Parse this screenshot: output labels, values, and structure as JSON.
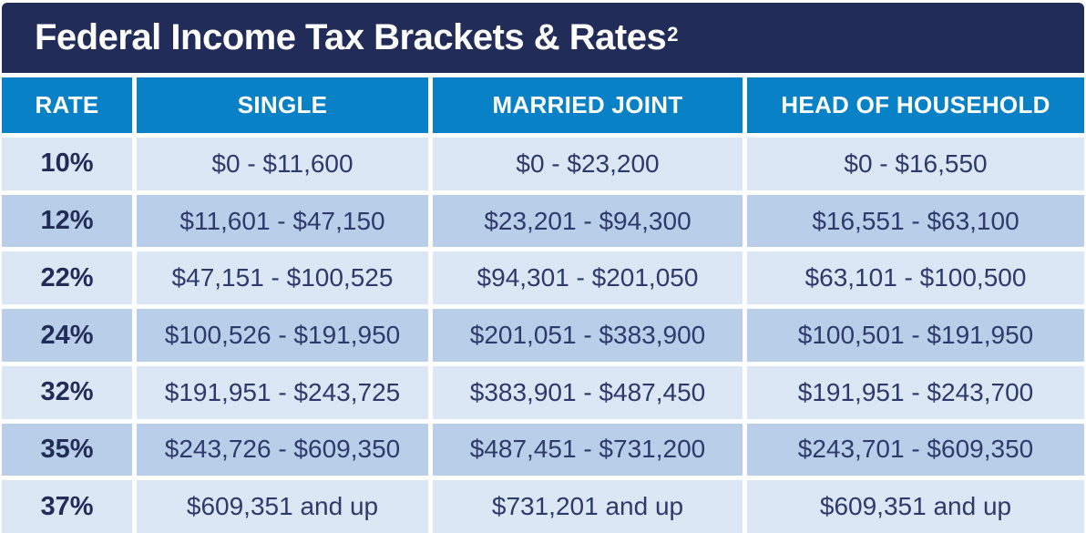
{
  "title": {
    "text": "Federal Income Tax Brackets & Rates",
    "superscript": "2"
  },
  "table": {
    "headers": {
      "rate": "RATE",
      "single": "SINGLE",
      "married_joint": "MARRIED JOINT",
      "head_of_household": "HEAD OF HOUSEHOLD"
    },
    "rows": [
      {
        "rate": "10%",
        "single": "$0 - $11,600",
        "married_joint": "$0 - $23,200",
        "head_of_household": "$0 - $16,550"
      },
      {
        "rate": "12%",
        "single": "$11,601 - $47,150",
        "married_joint": "$23,201 - $94,300",
        "head_of_household": "$16,551 - $63,100"
      },
      {
        "rate": "22%",
        "single": "$47,151 - $100,525",
        "married_joint": "$94,301 - $201,050",
        "head_of_household": "$63,101 - $100,500"
      },
      {
        "rate": "24%",
        "single": "$100,526 - $191,950",
        "married_joint": "$201,051 - $383,900",
        "head_of_household": "$100,501 - $191,950"
      },
      {
        "rate": "32%",
        "single": "$191,951 - $243,725",
        "married_joint": "$383,901 - $487,450",
        "head_of_household": "$191,951 - $243,700"
      },
      {
        "rate": "35%",
        "single": "$243,726 - $609,350",
        "married_joint": "$487,451 - $731,200",
        "head_of_household": "$243,701 - $609,350"
      },
      {
        "rate": "37%",
        "single": "$609,351 and up",
        "married_joint": "$731,201 and up",
        "head_of_household": "$609,351 and up"
      }
    ]
  },
  "colors": {
    "title_bg": "#222c58",
    "header_bg": "#0981c6",
    "header_text": "#ffffff",
    "row_light": "#dce7f5",
    "row_dark": "#b9cfe9",
    "data_text": "#2d3a6b"
  },
  "chart_data": {
    "type": "table",
    "title": "Federal Income Tax Brackets & Rates²",
    "columns": [
      "RATE",
      "SINGLE",
      "MARRIED JOINT",
      "HEAD OF HOUSEHOLD"
    ],
    "rows": [
      [
        "10%",
        "$0 - $11,600",
        "$0 - $23,200",
        "$0 - $16,550"
      ],
      [
        "12%",
        "$11,601 - $47,150",
        "$23,201 - $94,300",
        "$16,551 - $63,100"
      ],
      [
        "22%",
        "$47,151 - $100,525",
        "$94,301 - $201,050",
        "$63,101 - $100,500"
      ],
      [
        "24%",
        "$100,526 - $191,950",
        "$201,051 - $383,900",
        "$100,501 - $191,950"
      ],
      [
        "32%",
        "$191,951 - $243,725",
        "$383,901 - $487,450",
        "$191,951 - $243,700"
      ],
      [
        "35%",
        "$243,726 - $609,350",
        "$487,451 - $731,200",
        "$243,701 - $609,350"
      ],
      [
        "37%",
        "$609,351 and up",
        "$731,201 and up",
        "$609,351 and up"
      ]
    ],
    "rate_percentages": [
      10,
      12,
      22,
      24,
      32,
      35,
      37
    ]
  }
}
